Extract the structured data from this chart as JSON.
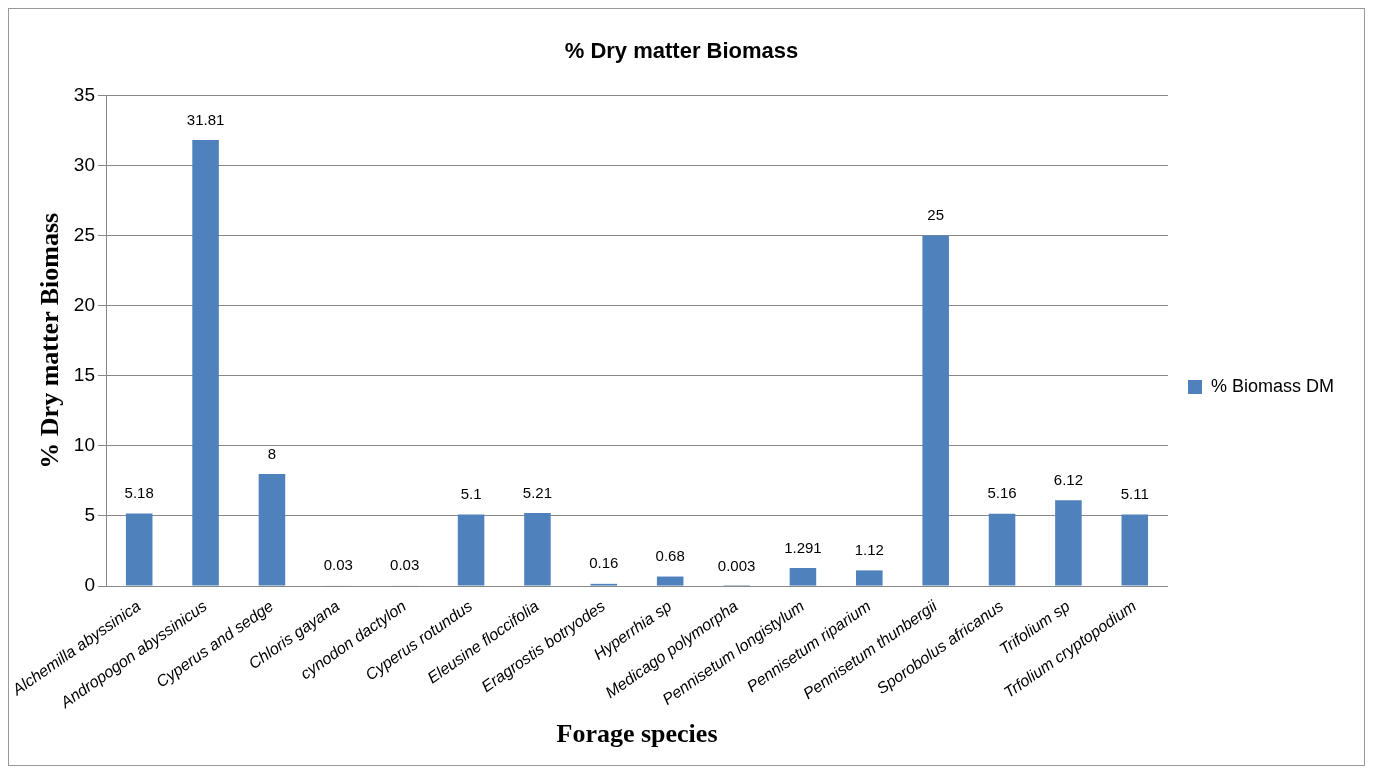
{
  "chart_data": {
    "type": "bar",
    "title": "% Dry matter Biomass",
    "xlabel": "Forage species",
    "ylabel": "% Dry matter Biomass",
    "categories": [
      "Alchemilla abyssinica",
      "Andropogon abyssinicus",
      "Cyperus and sedge",
      "Chloris gayana",
      "cynodon dactylon",
      "Cyperus rotundus",
      "Eleusine floccifolia",
      "Eragrostis botryodes",
      "Hyperrhia sp",
      "Medicago polymorpha",
      "Pennisetum longistylum",
      "Pennisetum riparium",
      "Pennisetum thunbergii",
      "Sporobolus africanus",
      "Trifolium sp",
      "Trfolium cryptopodium"
    ],
    "series": [
      {
        "name": "% Biomass DM",
        "color": "#4f81bd",
        "values": [
          5.18,
          31.81,
          8,
          0.03,
          0.03,
          5.1,
          5.21,
          0.16,
          0.68,
          0.003,
          1.291,
          1.12,
          25,
          5.16,
          6.12,
          5.11
        ]
      }
    ],
    "ylim": [
      0,
      35
    ],
    "yticks": [
      0,
      5,
      10,
      15,
      20,
      25,
      30,
      35
    ],
    "grid": "y",
    "legend": "right",
    "data_labels": true
  }
}
